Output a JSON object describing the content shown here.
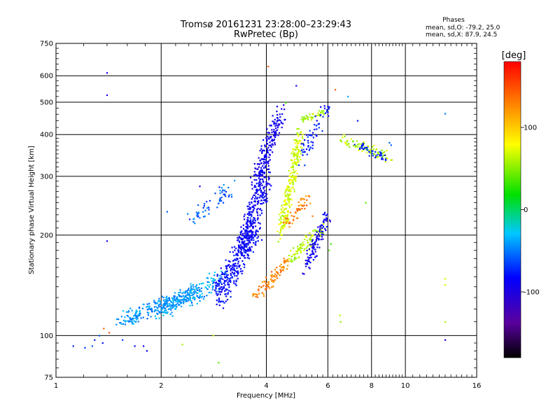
{
  "chart_data": {
    "type": "scatter",
    "title": "Tromsø 20161231 23:28:00–23:29:43",
    "subtitle": "RwPretec (Bp)",
    "xlabel": "Frequency [MHz]",
    "ylabel": "Stationary phase Virtual Height [km]",
    "x_scale": "log",
    "y_scale": "log",
    "xlim": [
      1,
      16
    ],
    "ylim": [
      75,
      750
    ],
    "x_ticks": [
      1,
      2,
      4,
      6,
      8,
      10,
      16
    ],
    "x_gridlines": [
      2,
      4,
      6,
      8,
      10
    ],
    "y_ticks": [
      75,
      100,
      200,
      300,
      400,
      500,
      600,
      750
    ],
    "y_gridlines": [
      100,
      200,
      300,
      400,
      500,
      600
    ],
    "grid": true,
    "legend": {
      "title": "Phases",
      "lines": [
        "mean, sd,O: -79.2, 25.0",
        "mean, sd,X:  87.9, 24.5"
      ],
      "position": "top-right"
    },
    "colorbar": {
      "label": "[deg]",
      "range": [
        -180,
        180
      ],
      "ticks": [
        100,
        0,
        -100
      ],
      "colormap": "rainbow (black-purple-blue-cyan-green-yellow-orange-red)"
    },
    "series": [
      {
        "group": "isolated echoes",
        "x": [
          1.12,
          1.21,
          1.27,
          1.29,
          1.33,
          1.36,
          1.37,
          1.4,
          1.4,
          1.4,
          1.42,
          1.55,
          1.68,
          1.78,
          1.82,
          2.08,
          2.3,
          2.58,
          2.82,
          2.92,
          3.6,
          4.05,
          4.55,
          4.87,
          5.15,
          5.42,
          6.05,
          6.12,
          6.3,
          6.5,
          6.52,
          6.85,
          7.3,
          7.7,
          8.2,
          8.6,
          9.0,
          9.1,
          13.0,
          13.0,
          13.0,
          13.0,
          13.0
        ],
        "y": [
          93,
          92,
          93,
          97,
          100,
          95,
          105,
          612,
          525,
          192,
          102,
          97,
          93,
          93,
          90,
          235,
          94,
          280,
          100,
          83,
          225,
          640,
          498,
          560,
          240,
          228,
          180,
          188,
          545,
          115,
          110,
          520,
          440,
          250,
          355,
          345,
          378,
          372,
          462,
          148,
          142,
          110,
          97
        ],
        "phase": [
          -75,
          -70,
          -60,
          -80,
          -60,
          -80,
          140,
          -95,
          -95,
          -95,
          150,
          -70,
          -85,
          -90,
          -85,
          -60,
          60,
          -90,
          60,
          40,
          -60,
          150,
          30,
          -90,
          140,
          130,
          45,
          30,
          140,
          60,
          50,
          -40,
          -80,
          40,
          -70,
          -60,
          -60,
          -60,
          -50,
          70,
          70,
          60,
          -100
        ]
      }
    ]
  }
}
